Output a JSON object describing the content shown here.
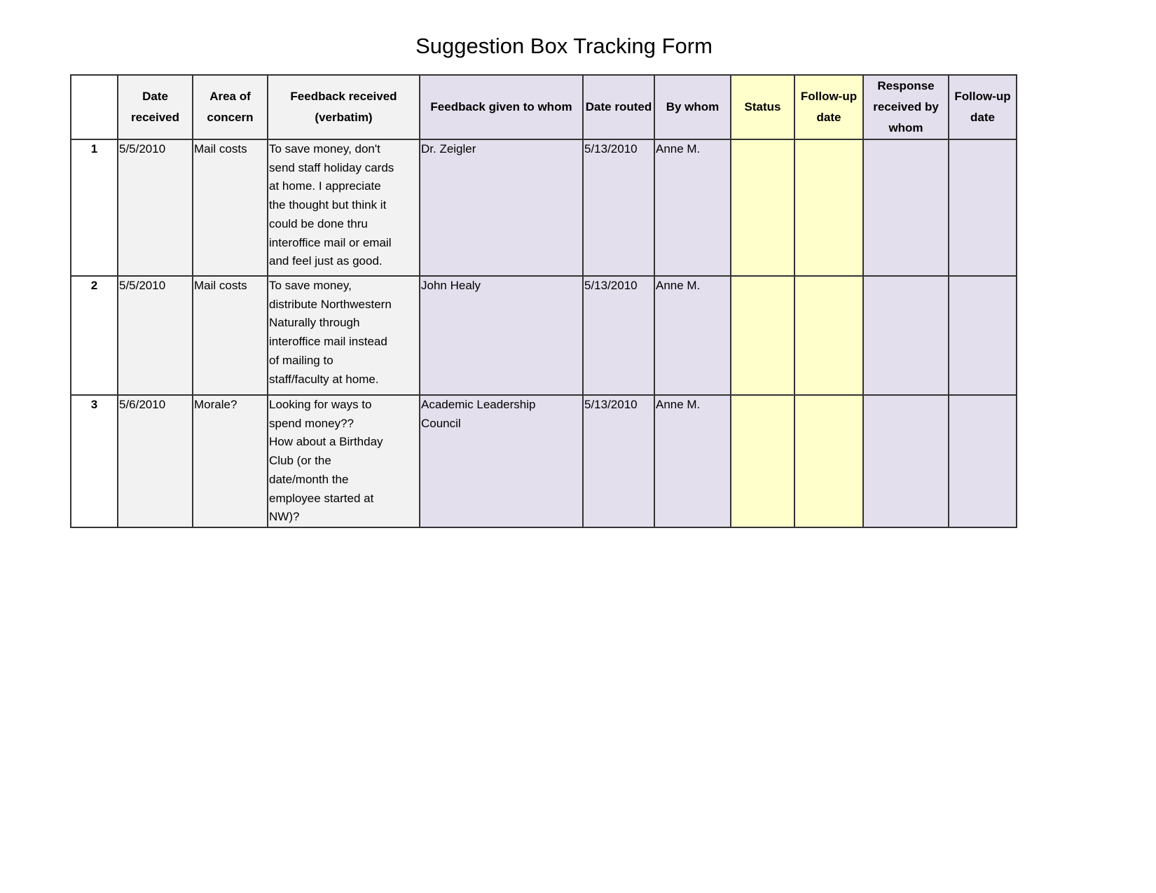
{
  "title": "Suggestion Box Tracking Form",
  "colors": {
    "grey": "#f2f2f2",
    "lavender": "#e4dfec",
    "yellow": "#ffffcc"
  },
  "headers": [
    "",
    "Date received",
    "Area of concern",
    "Feedback received (verbatim)",
    "Feedback given to whom",
    "Date routed",
    "By whom",
    "Status",
    "Follow-up date",
    "Response received by whom",
    "Follow-up date"
  ],
  "rows": [
    {
      "num": "1",
      "date_received": "5/5/2010",
      "area": "Mail costs",
      "feedback": "To save money, don't\nsend staff holiday cards\nat home.  I appreciate\nthe thought but think it\ncould be done thru\ninteroffice mail or email\nand feel just as good.",
      "given_to": "Dr. Zeigler",
      "date_routed": "5/13/2010",
      "by_whom": "Anne M.",
      "status": "",
      "follow_up": "",
      "response_by": "",
      "follow_up2": ""
    },
    {
      "num": "2",
      "date_received": "5/5/2010",
      "area": "Mail costs",
      "feedback": "To save money,\ndistribute Northwestern\nNaturally through\ninteroffice mail instead\nof mailing to\nstaff/faculty at home.",
      "given_to": "John Healy",
      "date_routed": "5/13/2010",
      "by_whom": "Anne M.",
      "status": "",
      "follow_up": "",
      "response_by": "",
      "follow_up2": ""
    },
    {
      "num": "3",
      "date_received": "5/6/2010",
      "area": "Morale?",
      "feedback": "Looking for ways to\nspend money??\nHow about a Birthday\nClub (or the\ndate/month the\nemployee started at\nNW)?",
      "given_to": "Academic Leadership\nCouncil",
      "date_routed": "5/13/2010",
      "by_whom": "Anne M.",
      "status": "",
      "follow_up": "",
      "response_by": "",
      "follow_up2": ""
    }
  ]
}
